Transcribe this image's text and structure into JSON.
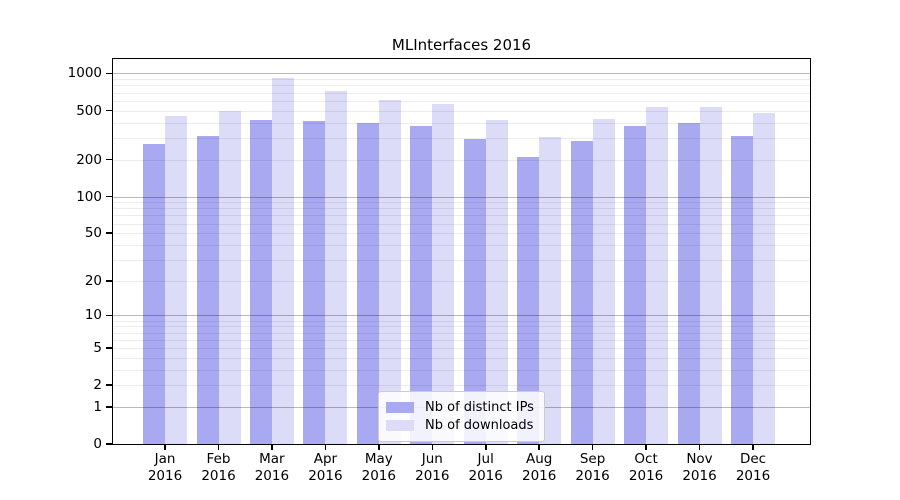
{
  "title": "MLInterfaces 2016",
  "colors": {
    "distinct_ips": "#a9a9f2",
    "downloads": "#dcdcf8",
    "axis": "#000000",
    "major_grid": "#b9b9b9",
    "minor_grid": "#ececec",
    "legend_border": "#cccccc"
  },
  "chart_data": {
    "type": "bar",
    "title": "MLInterfaces 2016",
    "months": [
      "Jan",
      "Feb",
      "Mar",
      "Apr",
      "May",
      "Jun",
      "Jul",
      "Aug",
      "Sep",
      "Oct",
      "Nov",
      "Dec"
    ],
    "year": "2016",
    "categories": [
      "Jan 2016",
      "Feb 2016",
      "Mar 2016",
      "Apr 2016",
      "May 2016",
      "Jun 2016",
      "Jul 2016",
      "Aug 2016",
      "Sep 2016",
      "Oct 2016",
      "Nov 2016",
      "Dec 2016"
    ],
    "series": [
      {
        "name": "Nb of distinct IPs",
        "color": "#a9a9f2",
        "values": [
          270,
          310,
          420,
          410,
          400,
          375,
          295,
          210,
          285,
          375,
          395,
          310
        ]
      },
      {
        "name": "Nb of downloads",
        "color": "#dcdcf8",
        "values": [
          455,
          500,
          920,
          725,
          605,
          570,
          420,
          305,
          425,
          535,
          535,
          480
        ]
      }
    ],
    "yscale": "log1p",
    "ylim": [
      0,
      1000
    ],
    "yticks": [
      0,
      1,
      2,
      5,
      10,
      20,
      50,
      100,
      200,
      500,
      1000
    ],
    "major_gridlines": [
      1,
      10,
      100,
      1000
    ],
    "minor_gridlines": [
      2,
      3,
      4,
      5,
      6,
      7,
      8,
      9,
      20,
      30,
      40,
      50,
      60,
      70,
      80,
      90,
      200,
      300,
      400,
      500,
      600,
      700,
      800,
      900
    ],
    "xlabel": "",
    "ylabel": "",
    "grid": "on",
    "legend_position": "lower center"
  }
}
